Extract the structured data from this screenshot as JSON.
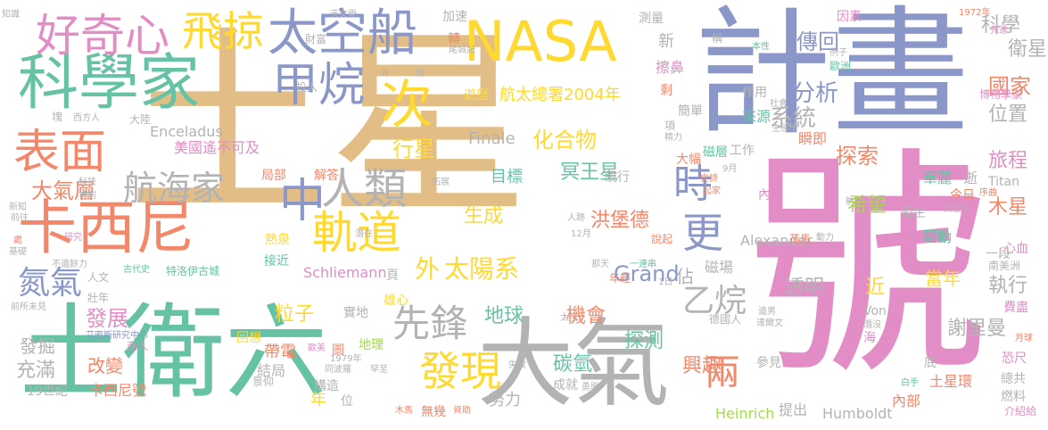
{
  "colors": {
    "tan": "#e2bd86",
    "blue": "#8a97c8",
    "pink": "#e28dc6",
    "green": "#66c2a5",
    "orange": "#f2876a",
    "lime": "#a6d854",
    "yellow": "#ffd92f",
    "gray": "#b3b3b3"
  },
  "words": [
    {
      "text": "土星",
      "c": "tan"
    },
    {
      "text": "號",
      "c": "pink"
    },
    {
      "text": "計畫",
      "c": "blue"
    },
    {
      "text": "土衛六",
      "c": "green"
    },
    {
      "text": "大氣",
      "c": "gray"
    },
    {
      "text": "科學家",
      "c": "green"
    },
    {
      "text": "NASA",
      "c": "yellow"
    },
    {
      "text": "太空船",
      "c": "blue"
    },
    {
      "text": "好奇心",
      "c": "pink"
    },
    {
      "text": "飛掠",
      "c": "yellow"
    },
    {
      "text": "卡西尼",
      "c": "orange"
    },
    {
      "text": "表面",
      "c": "orange"
    },
    {
      "text": "甲烷",
      "c": "blue"
    },
    {
      "text": "次",
      "c": "yellow"
    },
    {
      "text": "中",
      "c": "blue"
    },
    {
      "text": "人類",
      "c": "gray"
    },
    {
      "text": "軌道",
      "c": "yellow"
    },
    {
      "text": "時",
      "c": "blue"
    },
    {
      "text": "更",
      "c": "blue"
    },
    {
      "text": "航海家",
      "c": "gray"
    },
    {
      "text": "發現",
      "c": "yellow"
    },
    {
      "text": "先鋒",
      "c": "gray"
    },
    {
      "text": "兩",
      "c": "orange"
    },
    {
      "text": "乙烷",
      "c": "gray"
    },
    {
      "text": "氮氣",
      "c": "blue"
    },
    {
      "text": "外",
      "c": "yellow"
    },
    {
      "text": "太陽系",
      "c": "yellow"
    },
    {
      "text": "大氣層",
      "c": "orange"
    },
    {
      "text": "發展",
      "c": "pink"
    },
    {
      "text": "Grand",
      "c": "blue"
    },
    {
      "text": "行星",
      "c": "yellow"
    },
    {
      "text": "分析",
      "c": "blue"
    },
    {
      "text": "系統",
      "c": "gray"
    },
    {
      "text": "化合物",
      "c": "yellow"
    },
    {
      "text": "傳回",
      "c": "blue"
    },
    {
      "text": "衛星",
      "c": "gray"
    },
    {
      "text": "科學",
      "c": "gray"
    },
    {
      "text": "國家",
      "c": "orange"
    },
    {
      "text": "位置",
      "c": "gray"
    },
    {
      "text": "探索",
      "c": "orange"
    },
    {
      "text": "旅程",
      "c": "pink"
    },
    {
      "text": "木星",
      "c": "orange"
    },
    {
      "text": "希望",
      "c": "lime"
    },
    {
      "text": "冥王星",
      "c": "green"
    },
    {
      "text": "洪堡德",
      "c": "orange"
    },
    {
      "text": "生成",
      "c": "yellow"
    },
    {
      "text": "目標",
      "c": "green"
    },
    {
      "text": "地球",
      "c": "green"
    },
    {
      "text": "機會",
      "c": "orange"
    },
    {
      "text": "碳氫",
      "c": "green"
    },
    {
      "text": "探測",
      "c": "green"
    },
    {
      "text": "粒子",
      "c": "yellow"
    },
    {
      "text": "興趣",
      "c": "orange"
    },
    {
      "text": "謝里曼",
      "c": "gray"
    },
    {
      "text": "執行",
      "c": "gray"
    },
    {
      "text": "透明",
      "c": "gray"
    },
    {
      "text": "近",
      "c": "yellow"
    },
    {
      "text": "佔",
      "c": "gray"
    },
    {
      "text": "磁場",
      "c": "gray"
    },
    {
      "text": "當年",
      "c": "yellow"
    },
    {
      "text": "遊歷",
      "c": "yellow"
    },
    {
      "text": "航太總署2004年",
      "c": "yellow"
    },
    {
      "text": "Finale",
      "c": "gray"
    },
    {
      "text": "Enceladus",
      "c": "gray"
    },
    {
      "text": "美國遙不可及",
      "c": "pink"
    },
    {
      "text": "Schliemann",
      "c": "pink"
    },
    {
      "text": "Alexander",
      "c": "gray"
    },
    {
      "text": "Heinrich",
      "c": "lime"
    },
    {
      "text": "Humboldt",
      "c": "gray"
    },
    {
      "text": "Titan",
      "c": "gray"
    },
    {
      "text": "Von",
      "c": "gray"
    },
    {
      "text": "土星環",
      "c": "orange"
    },
    {
      "text": "改變",
      "c": "orange"
    },
    {
      "text": "發掘",
      "c": "gray"
    },
    {
      "text": "充滿",
      "c": "gray"
    },
    {
      "text": "19世紀",
      "c": "gray"
    },
    {
      "text": "卡西尼號",
      "c": "orange"
    },
    {
      "text": "帶電",
      "c": "orange"
    },
    {
      "text": "結局",
      "c": "gray"
    },
    {
      "text": "構造",
      "c": "gray"
    },
    {
      "text": "年",
      "c": "yellow"
    },
    {
      "text": "位",
      "c": "gray"
    },
    {
      "text": "努力",
      "c": "gray"
    },
    {
      "text": "無幾",
      "c": "orange"
    },
    {
      "text": "成就",
      "c": "gray"
    },
    {
      "text": "提出",
      "c": "gray"
    },
    {
      "text": "內部",
      "c": "orange"
    },
    {
      "text": "燃料",
      "c": "gray"
    },
    {
      "text": "恐尺",
      "c": "pink"
    },
    {
      "text": "總共",
      "c": "gray"
    },
    {
      "text": "介紹給",
      "c": "pink"
    },
    {
      "text": "底",
      "c": "gray"
    },
    {
      "text": "驅動",
      "c": "green"
    },
    {
      "text": "一段",
      "c": "gray"
    },
    {
      "text": "南美洲",
      "c": "gray"
    },
    {
      "text": "費盡",
      "c": "pink"
    },
    {
      "text": "今日",
      "c": "orange"
    },
    {
      "text": "心血",
      "c": "pink"
    },
    {
      "text": "陌生",
      "c": "gray"
    },
    {
      "text": "內側",
      "c": "pink"
    },
    {
      "text": "華麗",
      "c": "green"
    },
    {
      "text": "逝",
      "c": "gray"
    },
    {
      "text": "瞬即",
      "c": "orange"
    },
    {
      "text": "工作",
      "c": "gray"
    },
    {
      "text": "來源",
      "c": "green"
    },
    {
      "text": "作用",
      "c": "gray"
    },
    {
      "text": "簡單",
      "c": "gray"
    },
    {
      "text": "剩",
      "c": "orange"
    },
    {
      "text": "擦鼻",
      "c": "pink"
    },
    {
      "text": "新",
      "c": "gray"
    },
    {
      "text": "加速",
      "c": "gray"
    },
    {
      "text": "轉",
      "c": "orange"
    },
    {
      "text": "測量",
      "c": "gray"
    },
    {
      "text": "稱",
      "c": "gray"
    },
    {
      "text": "因素",
      "c": "pink"
    },
    {
      "text": "歐洲",
      "c": "green"
    },
    {
      "text": "博物學家",
      "c": "pink"
    },
    {
      "text": "大幅",
      "c": "orange"
    },
    {
      "text": "磁層",
      "c": "green"
    },
    {
      "text": "局部",
      "c": "orange"
    },
    {
      "text": "解答",
      "c": "orange"
    },
    {
      "text": "熱泉",
      "c": "yellow"
    },
    {
      "text": "接近",
      "c": "green"
    },
    {
      "text": "回想",
      "c": "yellow"
    },
    {
      "text": "頁",
      "c": "gray"
    },
    {
      "text": "雄心",
      "c": "yellow"
    },
    {
      "text": "實地",
      "c": "gray"
    },
    {
      "text": "年輕",
      "c": "orange"
    },
    {
      "text": "德國人",
      "c": "gray"
    },
    {
      "text": "參見",
      "c": "gray"
    },
    {
      "text": "海",
      "c": "pink"
    },
    {
      "text": "投入",
      "c": "gray"
    },
    {
      "text": "財富",
      "c": "gray"
    },
    {
      "text": "尾城記",
      "c": "gray"
    },
    {
      "text": "天文學",
      "c": "gray"
    },
    {
      "text": "知識",
      "c": "gray"
    },
    {
      "text": "1972年",
      "c": "orange"
    },
    {
      "text": "先進",
      "c": "pink"
    },
    {
      "text": "本性",
      "c": "green"
    },
    {
      "text": "例子",
      "c": "gray"
    },
    {
      "text": "社會",
      "c": "gray"
    },
    {
      "text": "生態學",
      "c": "gray"
    },
    {
      "text": "精力",
      "c": "gray"
    },
    {
      "text": "項",
      "c": "gray"
    },
    {
      "text": "史詩",
      "c": "orange"
    },
    {
      "text": "起家",
      "c": "orange"
    },
    {
      "text": "9月",
      "c": "gray"
    },
    {
      "text": "12月",
      "c": "gray"
    },
    {
      "text": "人跡",
      "c": "gray"
    },
    {
      "text": "說起",
      "c": "orange"
    },
    {
      "text": "動力",
      "c": "gray"
    },
    {
      "text": "荷馬",
      "c": "orange"
    },
    {
      "text": "太空人",
      "c": "gray"
    },
    {
      "text": "序曲",
      "c": "orange"
    },
    {
      "text": "航",
      "c": "gray"
    },
    {
      "text": "達爾文",
      "c": "gray"
    },
    {
      "text": "遺男",
      "c": "gray"
    },
    {
      "text": "月球",
      "c": "orange"
    },
    {
      "text": "白手",
      "c": "green"
    },
    {
      "text": "那天",
      "c": "gray"
    },
    {
      "text": "一連串",
      "c": "green"
    },
    {
      "text": "1日",
      "c": "gray"
    },
    {
      "text": "太空",
      "c": "gray"
    },
    {
      "text": "失敗",
      "c": "gray"
    },
    {
      "text": "勇闖",
      "c": "gray"
    },
    {
      "text": "拓展",
      "c": "gray"
    },
    {
      "text": "同波羅",
      "c": "gray"
    },
    {
      "text": "1979年",
      "c": "gray"
    },
    {
      "text": "罕至",
      "c": "gray"
    },
    {
      "text": "圖",
      "c": "orange"
    },
    {
      "text": "歐美",
      "c": "pink"
    },
    {
      "text": "地理",
      "c": "lime"
    },
    {
      "text": "資助",
      "c": "orange"
    },
    {
      "text": "木馬",
      "c": "orange"
    },
    {
      "text": "景仰",
      "c": "gray"
    },
    {
      "text": "特洛伊古城",
      "c": "green"
    },
    {
      "text": "古代史",
      "c": "green"
    },
    {
      "text": "人文",
      "c": "gray"
    },
    {
      "text": "艾密斯研究中心",
      "c": "blue"
    },
    {
      "text": "前所未見",
      "c": "gray"
    },
    {
      "text": "不遺餘力",
      "c": "gray"
    },
    {
      "text": "商人",
      "c": "pink"
    },
    {
      "text": "壯年",
      "c": "gray"
    },
    {
      "text": "研究",
      "c": "pink"
    },
    {
      "text": "基礎",
      "c": "gray"
    },
    {
      "text": "處",
      "c": "orange"
    },
    {
      "text": "前往",
      "c": "gray"
    },
    {
      "text": "新知",
      "c": "gray"
    },
    {
      "text": "特別",
      "c": "gray"
    },
    {
      "text": "科技",
      "c": "gray"
    },
    {
      "text": "塊",
      "c": "gray"
    },
    {
      "text": "西方人",
      "c": "gray"
    },
    {
      "text": "大陸",
      "c": "gray"
    },
    {
      "text": "潛在",
      "c": "gray"
    },
    {
      "text": "繞行",
      "c": "gray"
    },
    {
      "text": "外",
      "c": "gray"
    },
    {
      "text": "怕",
      "c": "gray"
    },
    {
      "text": "潛沒",
      "c": "gray"
    }
  ]
}
